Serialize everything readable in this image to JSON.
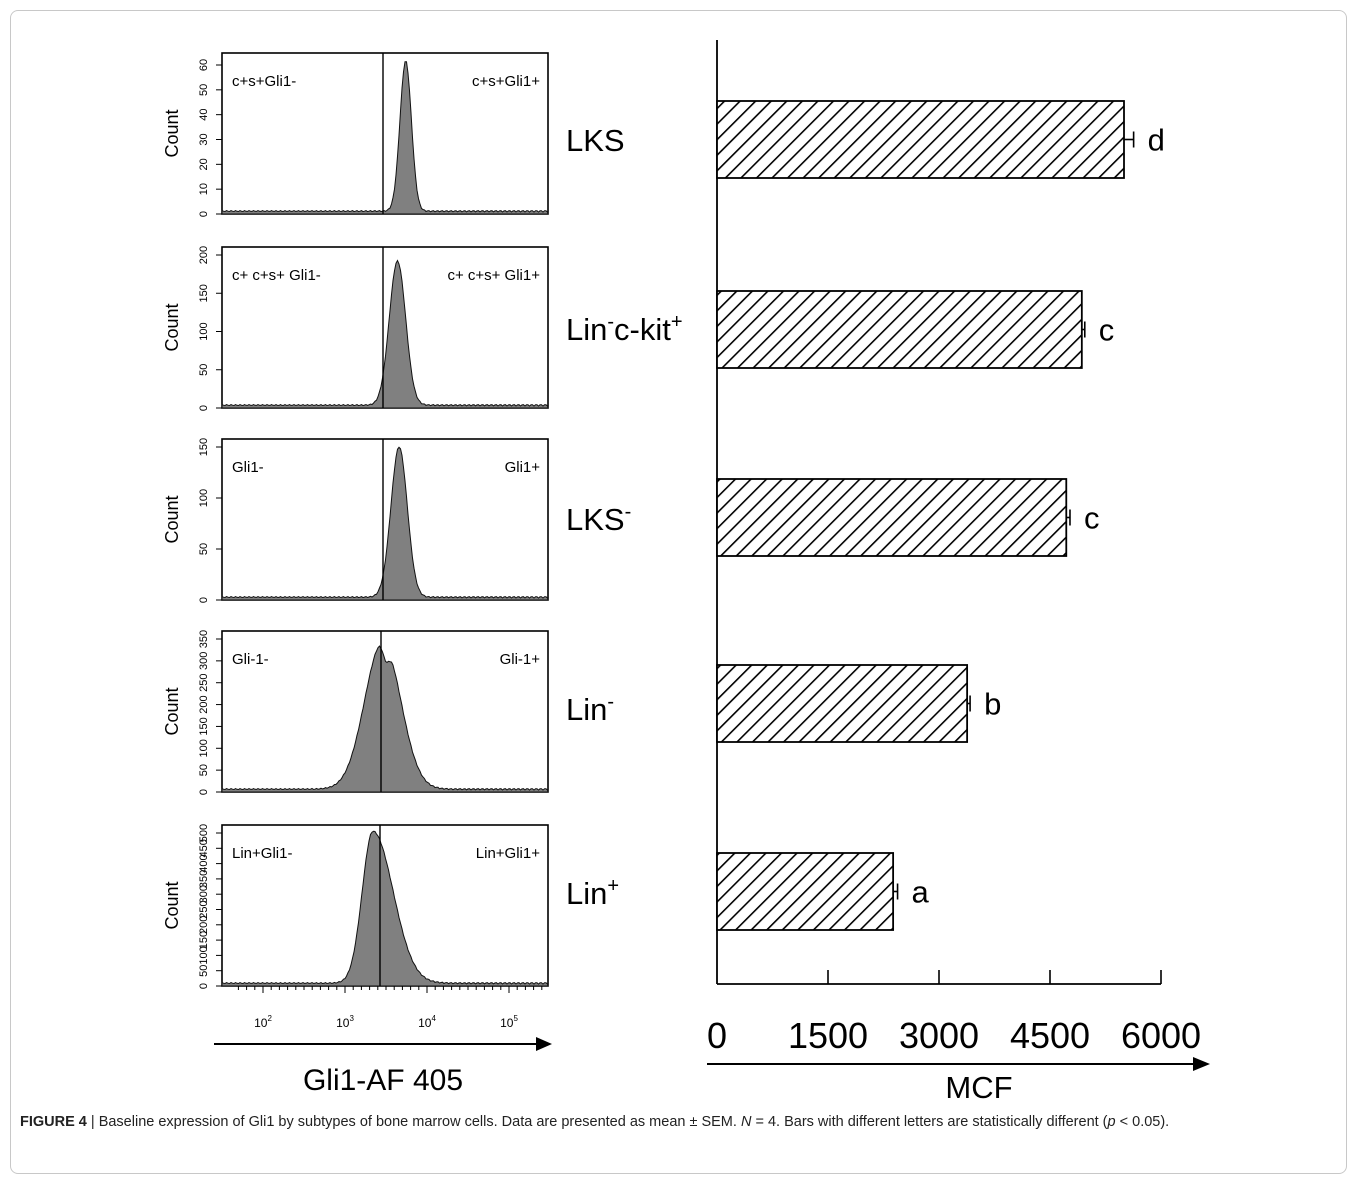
{
  "panels": [
    {
      "ylabel": "Count",
      "gate_left": "c+s+Gli1-",
      "gate_right": "c+s+Gli1+",
      "yticks": [
        "0",
        "10",
        "20",
        "30",
        "40",
        "50",
        "60"
      ]
    },
    {
      "ylabel": "Count",
      "gate_left": "c+ c+s+ Gli1-",
      "gate_right": "c+ c+s+ Gli1+",
      "yticks": [
        "0",
        "50",
        "100",
        "150",
        "200"
      ]
    },
    {
      "ylabel": "Count",
      "gate_left": "Gli1-",
      "gate_right": "Gli1+",
      "yticks": [
        "0",
        "50",
        "100",
        "150"
      ]
    },
    {
      "ylabel": "Count",
      "gate_left": "Gli-1-",
      "gate_right": "Gli-1+",
      "yticks": [
        "0",
        "50",
        "100",
        "150",
        "200",
        "250",
        "300",
        "350"
      ]
    },
    {
      "ylabel": "Count",
      "gate_left": "Lin+Gli1-",
      "gate_right": "Lin+Gli1+",
      "yticks": [
        "0",
        "50",
        "100",
        "150",
        "200",
        "250",
        "300",
        "350",
        "400",
        "450",
        "500"
      ]
    }
  ],
  "histogram_xticks": [
    {
      "base": "10",
      "exp": "2"
    },
    {
      "base": "10",
      "exp": "3"
    },
    {
      "base": "10",
      "exp": "4"
    },
    {
      "base": "10",
      "exp": "5"
    }
  ],
  "histogram_xlabel": "Gli1-AF 405",
  "row_labels": [
    {
      "main": "LKS",
      "sup": ""
    },
    {
      "main": "Lin",
      "sup": "-",
      "rest": "c-kit",
      "sup2": "+"
    },
    {
      "main": "LKS",
      "sup": "-"
    },
    {
      "main": "Lin",
      "sup": "-"
    },
    {
      "main": "Lin",
      "sup": "+"
    }
  ],
  "chart_data": {
    "type": "bar",
    "orientation": "horizontal",
    "categories": [
      "LKS",
      "Lin-c-kit+",
      "LKS-",
      "Lin-",
      "Lin+"
    ],
    "values": [
      5500,
      4930,
      4720,
      3380,
      2380
    ],
    "errors": [
      130,
      40,
      50,
      40,
      60
    ],
    "significance_letters": [
      "d",
      "c",
      "c",
      "b",
      "a"
    ],
    "xlabel": "MCF",
    "xticks": [
      0,
      1500,
      3000,
      4500,
      6000
    ],
    "xlim": [
      0,
      6000
    ],
    "bar_fill": "diagonal-hatch",
    "grid": false
  },
  "caption": {
    "figno": "FIGURE 4",
    "text1": " | Baseline expression of Gli1 by subtypes of bone marrow cells. Data are presented as mean ± SEM. ",
    "n_italic": "N",
    "text2": " = 4. Bars with different letters are statistically different (",
    "p_italic": "p",
    "text3": " < 0.05)."
  }
}
